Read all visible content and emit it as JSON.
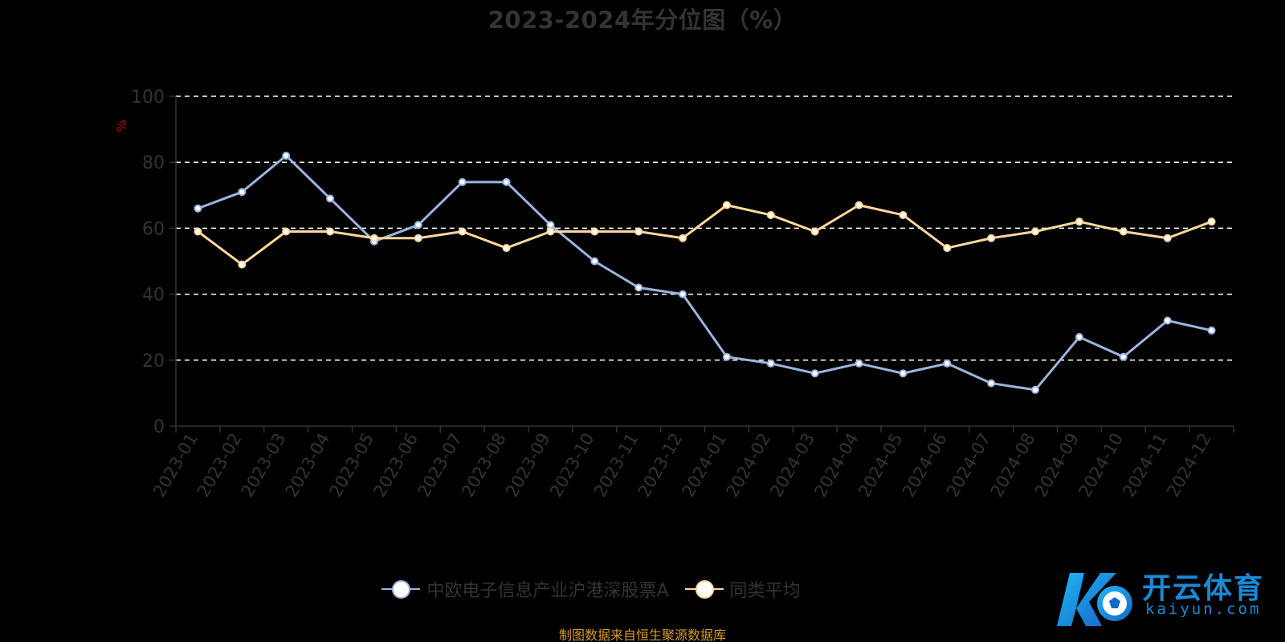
{
  "title": "2023-2024年分位图（%）",
  "source": "制图数据来自恒生聚源数据库",
  "watermark": {
    "text_cn": "开云体育",
    "text_en": "kaiyun.com"
  },
  "colors": {
    "background": "#000000",
    "series_fund": "#9ab5df",
    "series_avg": "#fdd89a",
    "grid": "#ffffff",
    "axis": "#333333",
    "source_note": "#d99a2b",
    "y_unit": "#c00000"
  },
  "chart_data": {
    "type": "line",
    "title": "2023-2024年分位图（%）",
    "ylabel": "%",
    "xlabel": "",
    "ylim": [
      0,
      100
    ],
    "yticks": [
      0,
      20,
      40,
      60,
      80,
      100
    ],
    "grid": true,
    "legend_position": "bottom",
    "categories": [
      "2023-01",
      "2023-02",
      "2023-03",
      "2023-04",
      "2023-05",
      "2023-06",
      "2023-07",
      "2023-08",
      "2023-09",
      "2023-10",
      "2023-11",
      "2023-12",
      "2024-01",
      "2024-02",
      "2024-03",
      "2024-04",
      "2024-05",
      "2024-06",
      "2024-07",
      "2024-08",
      "2024-09",
      "2024-10",
      "2024-11",
      "2024-12"
    ],
    "series": [
      {
        "name": "中欧电子信息产业沪港深股票A",
        "color": "#9ab5df",
        "values": [
          66,
          71,
          82,
          69,
          56,
          61,
          74,
          74,
          61,
          50,
          42,
          40,
          21,
          19,
          16,
          19,
          16,
          19,
          13,
          11,
          27,
          21,
          32,
          29
        ]
      },
      {
        "name": "同类平均",
        "color": "#fdd89a",
        "values": [
          59,
          49,
          59,
          59,
          57,
          57,
          59,
          54,
          59,
          59,
          59,
          57,
          67,
          64,
          59,
          67,
          64,
          54,
          57,
          59,
          62,
          59,
          57,
          62
        ]
      }
    ]
  }
}
